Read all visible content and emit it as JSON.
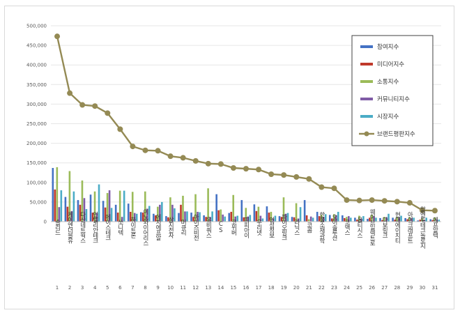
{
  "chart_data": {
    "type": "bar",
    "title": "",
    "xlabel": "",
    "ylabel": "",
    "ylim": [
      0,
      500000
    ],
    "yticks": [
      "0",
      "50,000",
      "100,000",
      "150,000",
      "200,000",
      "250,000",
      "300,000",
      "350,000",
      "400,000",
      "450,000",
      "500,000"
    ],
    "grid": true,
    "legend_position": "top-right",
    "index_labels": [
      "1",
      "2",
      "3",
      "4",
      "5",
      "6",
      "7",
      "8",
      "9",
      "10",
      "11",
      "12",
      "13",
      "14",
      "15",
      "16",
      "17",
      "18",
      "19",
      "20",
      "21",
      "22",
      "23",
      "24",
      "25",
      "26",
      "27",
      "28",
      "29",
      "30",
      "31"
    ],
    "categories": [
      "솔리드",
      "케이엔더블유",
      "다산네트웍스",
      "인텔리안테크",
      "에이스테크",
      "쏘니텍",
      "하이트론",
      "이노와이어리스",
      "에치에프알",
      "삼지전자",
      "머큐리",
      "아이즈비전",
      "유비쿼스",
      "CS",
      "코위버",
      "피피아이",
      "우리넷",
      "인성정보",
      "파이오링크",
      "라닉스",
      "코콤",
      "한울소재과학",
      "오이솔루션",
      "코맥스",
      "옵티시스",
      "웨이브일렉트로",
      "다보링크",
      "현대에이치티",
      "아이크래프트",
      "알엔투테크놀로지",
      "에프알텍"
    ],
    "series": [
      {
        "name": "참여지수",
        "color": "#4472c4",
        "values": [
          137000,
          63000,
          55000,
          69000,
          53000,
          43000,
          46000,
          24000,
          20000,
          14000,
          22000,
          23000,
          16000,
          70000,
          22000,
          55000,
          44000,
          39000,
          14000,
          12000,
          55000,
          25000,
          17000,
          16000,
          10000,
          7000,
          9000,
          10000,
          9000,
          3000,
          6000
        ]
      },
      {
        "name": "미디어지수",
        "color": "#c0392b",
        "values": [
          82000,
          38000,
          43000,
          23000,
          36000,
          23000,
          25000,
          23000,
          16000,
          11000,
          43000,
          12000,
          12000,
          29000,
          25000,
          11000,
          27000,
          23000,
          12000,
          11000,
          16000,
          14000,
          8000,
          9000,
          5000,
          10000,
          4000,
          5000,
          6000,
          5000,
          4000
        ]
      },
      {
        "name": "소통지수",
        "color": "#9bbb59",
        "values": [
          139000,
          129000,
          105000,
          77000,
          73000,
          79000,
          76000,
          77000,
          38000,
          62000,
          66000,
          70000,
          85000,
          31000,
          68000,
          35000,
          38000,
          25000,
          62000,
          47000,
          6000,
          18000,
          19000,
          12000,
          15000,
          18000,
          12000,
          12000,
          12000,
          8000,
          11000
        ]
      },
      {
        "name": "커뮤니티지수",
        "color": "#7f5ba6",
        "values": [
          37000,
          27000,
          60000,
          22000,
          80000,
          12000,
          22000,
          33000,
          43000,
          43000,
          26000,
          25000,
          12000,
          18000,
          13000,
          13000,
          15000,
          8000,
          20000,
          8000,
          13000,
          12000,
          16000,
          14000,
          7000,
          14000,
          11000,
          10000,
          9000,
          4000,
          5000
        ]
      },
      {
        "name": "시장지수",
        "color": "#4bacc6",
        "values": [
          80000,
          77000,
          32000,
          95000,
          35000,
          79000,
          20000,
          40000,
          50000,
          34000,
          26000,
          24000,
          26000,
          13000,
          15000,
          17000,
          8000,
          15000,
          22000,
          37000,
          10000,
          19000,
          25000,
          10000,
          14000,
          10000,
          20000,
          15000,
          10000,
          10000,
          5000
        ]
      }
    ],
    "line_series": {
      "name": "브랜드평판지수",
      "color": "#948a54",
      "values": [
        473000,
        328000,
        298000,
        295000,
        277000,
        236000,
        192000,
        182000,
        181000,
        167000,
        163000,
        155000,
        148000,
        147000,
        137000,
        135000,
        133000,
        121000,
        119000,
        114000,
        109000,
        88000,
        85000,
        55000,
        54000,
        55000,
        53000,
        51000,
        48000,
        29000,
        28000
      ]
    }
  }
}
